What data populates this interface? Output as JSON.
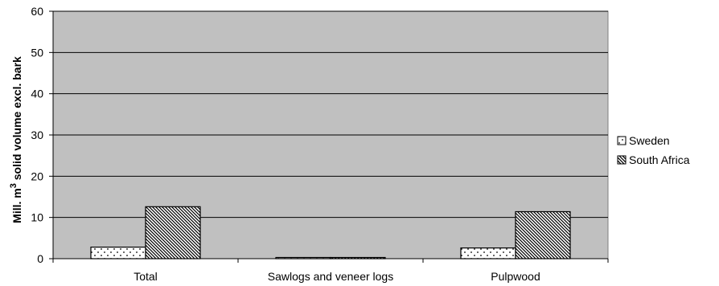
{
  "chart_data": {
    "type": "bar",
    "categories": [
      "Total",
      "Sawlogs and veneer logs",
      "Pulpwood"
    ],
    "series": [
      {
        "name": "Sweden",
        "values": [
          2.8,
          0.1,
          2.6
        ],
        "pattern": "dots"
      },
      {
        "name": "South Africa",
        "values": [
          12.6,
          0.2,
          11.4
        ],
        "pattern": "diagonal-hatch"
      }
    ],
    "ylabel": {
      "prefix": "Mill. m",
      "superscript": "3",
      "suffix": " solid volume excl. bark"
    },
    "ylim": [
      0,
      60
    ],
    "yticks": [
      0,
      10,
      20,
      30,
      40,
      50,
      60
    ],
    "grid": true,
    "legend_position": "right",
    "colors": {
      "plot_background": "#c0c0c0",
      "bar_fill": "#ffffff",
      "gridline": "#000000",
      "bar_stroke": "#000000"
    }
  }
}
